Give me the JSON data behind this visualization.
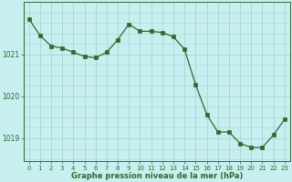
{
  "x": [
    0,
    1,
    2,
    3,
    4,
    5,
    6,
    7,
    8,
    9,
    10,
    11,
    12,
    13,
    14,
    15,
    16,
    17,
    18,
    19,
    20,
    21,
    22,
    23
  ],
  "y": [
    1021.85,
    1021.45,
    1021.2,
    1021.15,
    1021.05,
    1020.95,
    1020.92,
    1021.05,
    1021.35,
    1021.72,
    1021.55,
    1021.55,
    1021.52,
    1021.42,
    1021.12,
    1020.28,
    1019.57,
    1019.15,
    1019.15,
    1018.88,
    1018.78,
    1018.78,
    1019.08,
    1019.45
  ],
  "line_color": "#2d6a2d",
  "marker_color": "#2d6a2d",
  "bg_color": "#c8eff0",
  "grid_color": "#a8d8d8",
  "xlabel": "Graphe pression niveau de la mer (hPa)",
  "xlabel_color": "#2d6a2d",
  "tick_color": "#2d6a2d",
  "axis_color": "#2d6a2d",
  "ylim": [
    1018.45,
    1022.25
  ],
  "yticks": [
    1019,
    1020,
    1021
  ],
  "xlim": [
    -0.5,
    23.5
  ],
  "xticks": [
    0,
    1,
    2,
    3,
    4,
    5,
    6,
    7,
    8,
    9,
    10,
    11,
    12,
    13,
    14,
    15,
    16,
    17,
    18,
    19,
    20,
    21,
    22,
    23
  ]
}
